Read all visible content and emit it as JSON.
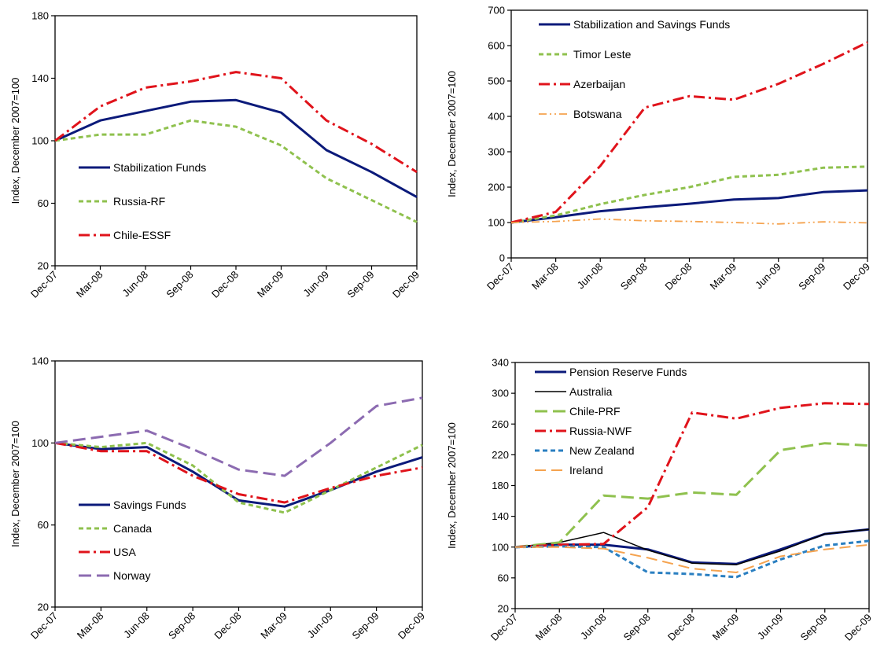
{
  "chart_data": [
    {
      "type": "line",
      "ylabel": "Index, December 2007=100",
      "ylim": [
        20,
        180
      ],
      "yticks": [
        20,
        60,
        100,
        140,
        180
      ],
      "categories": [
        "Dec-07",
        "Mar-08",
        "Jun-08",
        "Sep-08",
        "Dec-08",
        "Mar-09",
        "Jun-09",
        "Sep-09",
        "Dec-09"
      ],
      "legend_position": "left",
      "series": [
        {
          "name": "Stabilization Funds",
          "color": "#0b1a7a",
          "dash": "solid",
          "values": [
            100,
            113,
            119,
            125,
            126,
            118,
            94,
            80,
            64
          ]
        },
        {
          "name": "Russia-RF",
          "color": "#8fc14e",
          "dash": "dash",
          "values": [
            100,
            104,
            104,
            113,
            109,
            97,
            76,
            62,
            48
          ]
        },
        {
          "name": "Chile-ESSF",
          "color": "#e0131b",
          "dash": "dashdot",
          "values": [
            100,
            122,
            134,
            138,
            144,
            140,
            113,
            98,
            80
          ]
        }
      ]
    },
    {
      "type": "line",
      "ylabel": "Index, December 2007=100",
      "ylim": [
        0,
        700
      ],
      "yticks": [
        0,
        100,
        200,
        300,
        400,
        500,
        600,
        700
      ],
      "categories": [
        "Dec-07",
        "Mar-08",
        "Jun-08",
        "Sep-08",
        "Dec-08",
        "Mar-09",
        "Jun-09",
        "Sep-09",
        "Dec-09"
      ],
      "legend_position": "top-left",
      "series": [
        {
          "name": "Stabilization and Savings Funds",
          "color": "#0b1a7a",
          "dash": "solid",
          "values": [
            100,
            115,
            132,
            143,
            153,
            165,
            169,
            186,
            191
          ]
        },
        {
          "name": "Timor Leste",
          "color": "#8fc14e",
          "dash": "dash",
          "values": [
            100,
            120,
            152,
            178,
            200,
            229,
            235,
            255,
            258
          ]
        },
        {
          "name": "Azerbaijan",
          "color": "#e0131b",
          "dash": "dashdot",
          "values": [
            100,
            130,
            260,
            425,
            457,
            447,
            492,
            548,
            609
          ]
        },
        {
          "name": "Botswana",
          "color": "#f5a34f",
          "dash": "dashdotdot",
          "values": [
            100,
            103,
            110,
            105,
            103,
            100,
            96,
            102,
            99
          ]
        }
      ]
    },
    {
      "type": "line",
      "ylabel": "Index, December 2007=100",
      "ylim": [
        20,
        140
      ],
      "yticks": [
        20,
        60,
        100,
        140
      ],
      "categories": [
        "Dec-07",
        "Mar-08",
        "Jun-08",
        "Sep-08",
        "Dec-08",
        "Mar-09",
        "Jun-09",
        "Sep-09",
        "Dec-09"
      ],
      "legend_position": "bottom-left",
      "series": [
        {
          "name": "Savings Funds",
          "color": "#0b1a7a",
          "dash": "solid",
          "values": [
            100,
            97,
            98,
            86,
            72,
            69,
            77,
            86,
            93
          ]
        },
        {
          "name": "Canada",
          "color": "#8fc14e",
          "dash": "dash",
          "values": [
            100,
            98,
            100,
            89,
            71,
            66,
            77,
            88,
            99
          ]
        },
        {
          "name": "USA",
          "color": "#e0131b",
          "dash": "dashdot",
          "values": [
            100,
            96,
            96,
            84,
            75,
            71,
            78,
            84,
            88
          ]
        },
        {
          "name": "Norway",
          "color": "#8c6bb1",
          "dash": "longdash",
          "values": [
            100,
            103,
            106,
            97,
            87,
            84,
            100,
            118,
            122
          ]
        }
      ]
    },
    {
      "type": "line",
      "ylabel": "Index, December 2007=100",
      "ylim": [
        20,
        340
      ],
      "yticks": [
        20,
        60,
        100,
        140,
        180,
        220,
        260,
        300,
        340
      ],
      "categories": [
        "Dec-07",
        "Mar-08",
        "Jun-08",
        "Sep-08",
        "Dec-08",
        "Mar-09",
        "Jun-09",
        "Sep-09",
        "Dec-09"
      ],
      "legend_position": "top-left",
      "series": [
        {
          "name": "Pension Reserve Funds",
          "color": "#0b1a7a",
          "dash": "solid-thick",
          "values": [
            100,
            103,
            103,
            97,
            80,
            78,
            97,
            117,
            123
          ]
        },
        {
          "name": "Australia",
          "color": "#000000",
          "dash": "solid-thin",
          "values": [
            100,
            106,
            119,
            96,
            79,
            77,
            95,
            117,
            123
          ]
        },
        {
          "name": "Chile-PRF",
          "color": "#8fc14e",
          "dash": "longdash",
          "values": [
            100,
            106,
            167,
            163,
            171,
            168,
            226,
            235,
            232
          ]
        },
        {
          "name": "Russia-NWF",
          "color": "#e0131b",
          "dash": "dashdot",
          "values": [
            100,
            103,
            104,
            152,
            275,
            267,
            281,
            287,
            286
          ]
        },
        {
          "name": "New Zealand",
          "color": "#2a7fc1",
          "dash": "dash",
          "values": [
            100,
            101,
            100,
            67,
            65,
            61,
            84,
            102,
            108
          ]
        },
        {
          "name": "Ireland",
          "color": "#f5a34f",
          "dash": "longdash-thin",
          "values": [
            100,
            100,
            98,
            86,
            72,
            67,
            88,
            97,
            103
          ]
        }
      ]
    }
  ]
}
